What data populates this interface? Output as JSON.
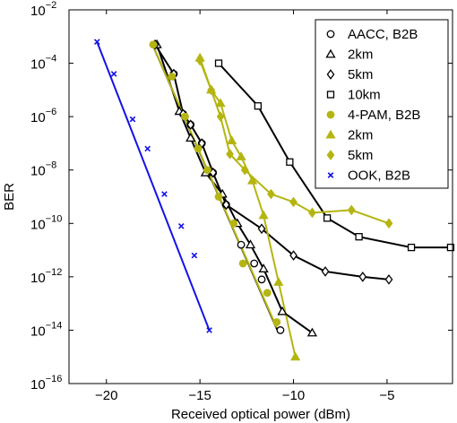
{
  "chart_data": {
    "type": "line",
    "xlabel": "Received optical power (dBm)",
    "ylabel": "BER",
    "xlim": [
      -22,
      -1.5
    ],
    "ylim_exp": [
      -16,
      -2
    ],
    "y_scale": "log",
    "x_ticks": [
      -20,
      -15,
      -10,
      -5
    ],
    "x_tick_labels": [
      "−20",
      "−15",
      "−10",
      "−5"
    ],
    "y_ticks_exp": [
      -16,
      -14,
      -12,
      -10,
      -8,
      -6,
      -4,
      -2
    ],
    "y_tick_labels": [
      {
        "base": "10",
        "exp": "−16"
      },
      {
        "base": "10",
        "exp": "−14"
      },
      {
        "base": "10",
        "exp": "−12"
      },
      {
        "base": "10",
        "exp": "−10"
      },
      {
        "base": "10",
        "exp": "−8"
      },
      {
        "base": "10",
        "exp": "−6"
      },
      {
        "base": "10",
        "exp": "−4"
      },
      {
        "base": "10",
        "exp": "−2"
      }
    ],
    "grid": false,
    "legend_position": "top-right",
    "colors": {
      "black": "#000000",
      "olive": "#b5b512",
      "blue": "#1212e8"
    },
    "series": [
      {
        "name": "AACC, B2B",
        "color": "#000000",
        "marker": "circle",
        "filled": false,
        "x": [
          -17.4,
          -16.4,
          -15.9,
          -15.5,
          -14.9,
          -14.3,
          -13.6,
          -12.8,
          -12.1,
          -11.7,
          -10.7
        ],
        "y": [
          -3.3,
          -4.4,
          -5.9,
          -6.3,
          -7.0,
          -8.1,
          -9.3,
          -10.8,
          -11.5,
          -12.1,
          -14.0
        ],
        "line_x": [
          -17.6,
          -10.8
        ],
        "line_y": [
          -3.2,
          -14.1
        ]
      },
      {
        "name": "2km",
        "color": "#000000",
        "marker": "triangle",
        "filled": false,
        "x": [
          -17.3,
          -16.1,
          -15.5,
          -14.7,
          -13.8,
          -13.0,
          -12.3,
          -11.6,
          -10.6,
          -9.0
        ],
        "y": [
          -3.3,
          -5.8,
          -6.8,
          -8.1,
          -8.9,
          -10.0,
          -10.8,
          -11.7,
          -13.3,
          -14.1
        ],
        "line_x": [
          -17.3,
          -16.1,
          -15.5,
          -14.7,
          -13.8,
          -13.0,
          -12.3,
          -11.6,
          -10.6,
          -9.0
        ],
        "line_y": [
          -3.3,
          -5.8,
          -6.8,
          -8.1,
          -8.9,
          -10.0,
          -10.8,
          -11.7,
          -13.3,
          -14.1
        ]
      },
      {
        "name": "5km",
        "color": "#000000",
        "marker": "diamond",
        "filled": false,
        "x": [
          -17.4,
          -16.4,
          -15.9,
          -15.5,
          -14.9,
          -14.3,
          -13.6,
          -11.7,
          -10.0,
          -8.3,
          -6.3,
          -4.9
        ],
        "y": [
          -3.3,
          -4.4,
          -5.9,
          -6.3,
          -7.0,
          -8.1,
          -9.3,
          -10.2,
          -11.2,
          -11.8,
          -12.0,
          -12.1
        ],
        "line_x": [
          -17.4,
          -16.4,
          -15.9,
          -15.5,
          -14.9,
          -14.3,
          -13.6,
          -11.7,
          -10.0,
          -8.3,
          -6.3,
          -4.9
        ],
        "line_y": [
          -3.3,
          -4.4,
          -5.9,
          -6.3,
          -7.0,
          -8.1,
          -9.3,
          -10.2,
          -11.2,
          -11.8,
          -12.0,
          -12.1
        ]
      },
      {
        "name": "10km",
        "color": "#000000",
        "marker": "square",
        "filled": false,
        "x": [
          -14.0,
          -11.9,
          -10.2,
          -8.2,
          -6.5,
          -3.7,
          -1.6
        ],
        "y": [
          -4.0,
          -5.6,
          -7.7,
          -9.8,
          -10.5,
          -10.9,
          -10.9
        ],
        "line_x": [
          -14.0,
          -11.9,
          -10.2,
          -8.2,
          -6.5,
          -3.7,
          -1.6
        ],
        "line_y": [
          -4.0,
          -5.6,
          -7.7,
          -9.8,
          -10.5,
          -10.9,
          -10.9
        ]
      },
      {
        "name": "4-PAM, B2B",
        "color": "#b5b512",
        "marker": "circle",
        "filled": true,
        "x": [
          -17.5,
          -16.5,
          -15.8,
          -15.1,
          -14.6,
          -14.0,
          -13.2,
          -12.7,
          -11.4,
          -10.9
        ],
        "y": [
          -3.3,
          -4.5,
          -6.0,
          -7.2,
          -8.0,
          -9.0,
          -10.0,
          -11.5,
          -12.6,
          -13.7
        ],
        "line_x": [
          -17.6,
          -10.9
        ],
        "line_y": [
          -3.2,
          -13.9
        ]
      },
      {
        "name": "2km",
        "color": "#b5b512",
        "marker": "triangle",
        "filled": true,
        "x": [
          -15.0,
          -14.4,
          -13.9,
          -13.3,
          -12.8,
          -12.2,
          -11.6,
          -10.8,
          -9.9
        ],
        "y": [
          -3.8,
          -5.0,
          -5.5,
          -6.9,
          -7.5,
          -8.4,
          -9.7,
          -12.2,
          -15.0
        ],
        "line_x": [
          -15.0,
          -14.4,
          -13.9,
          -13.3,
          -12.8,
          -12.2,
          -11.6,
          -10.8,
          -9.9
        ],
        "line_y": [
          -3.8,
          -5.0,
          -5.5,
          -6.9,
          -7.5,
          -8.4,
          -9.7,
          -12.2,
          -15.0
        ]
      },
      {
        "name": "5km",
        "color": "#b5b512",
        "marker": "diamond",
        "filled": true,
        "x": [
          -15.0,
          -14.4,
          -13.9,
          -13.4,
          -12.6,
          -11.2,
          -10.0,
          -9.0,
          -6.9,
          -4.9
        ],
        "y": [
          -3.9,
          -5.0,
          -6.0,
          -7.4,
          -8.0,
          -8.9,
          -9.2,
          -9.6,
          -9.5,
          -10.0
        ],
        "line_x": [
          -15.0,
          -14.4,
          -13.9,
          -13.4,
          -12.6,
          -11.2,
          -10.0,
          -9.0,
          -6.9,
          -4.9
        ],
        "line_y": [
          -3.9,
          -5.0,
          -6.0,
          -7.4,
          -8.0,
          -8.9,
          -9.2,
          -9.6,
          -9.5,
          -10.0
        ]
      },
      {
        "name": "OOK, B2B",
        "color": "#1212e8",
        "marker": "x",
        "filled": false,
        "x": [
          -20.5,
          -19.6,
          -18.6,
          -17.8,
          -16.9,
          -16.0,
          -15.3,
          -14.5
        ],
        "y": [
          -3.2,
          -4.4,
          -6.1,
          -7.2,
          -8.9,
          -10.1,
          -11.2,
          -14.0
        ],
        "line_x": [
          -20.5,
          -14.5
        ],
        "line_y": [
          -3.2,
          -14.0
        ]
      }
    ]
  }
}
